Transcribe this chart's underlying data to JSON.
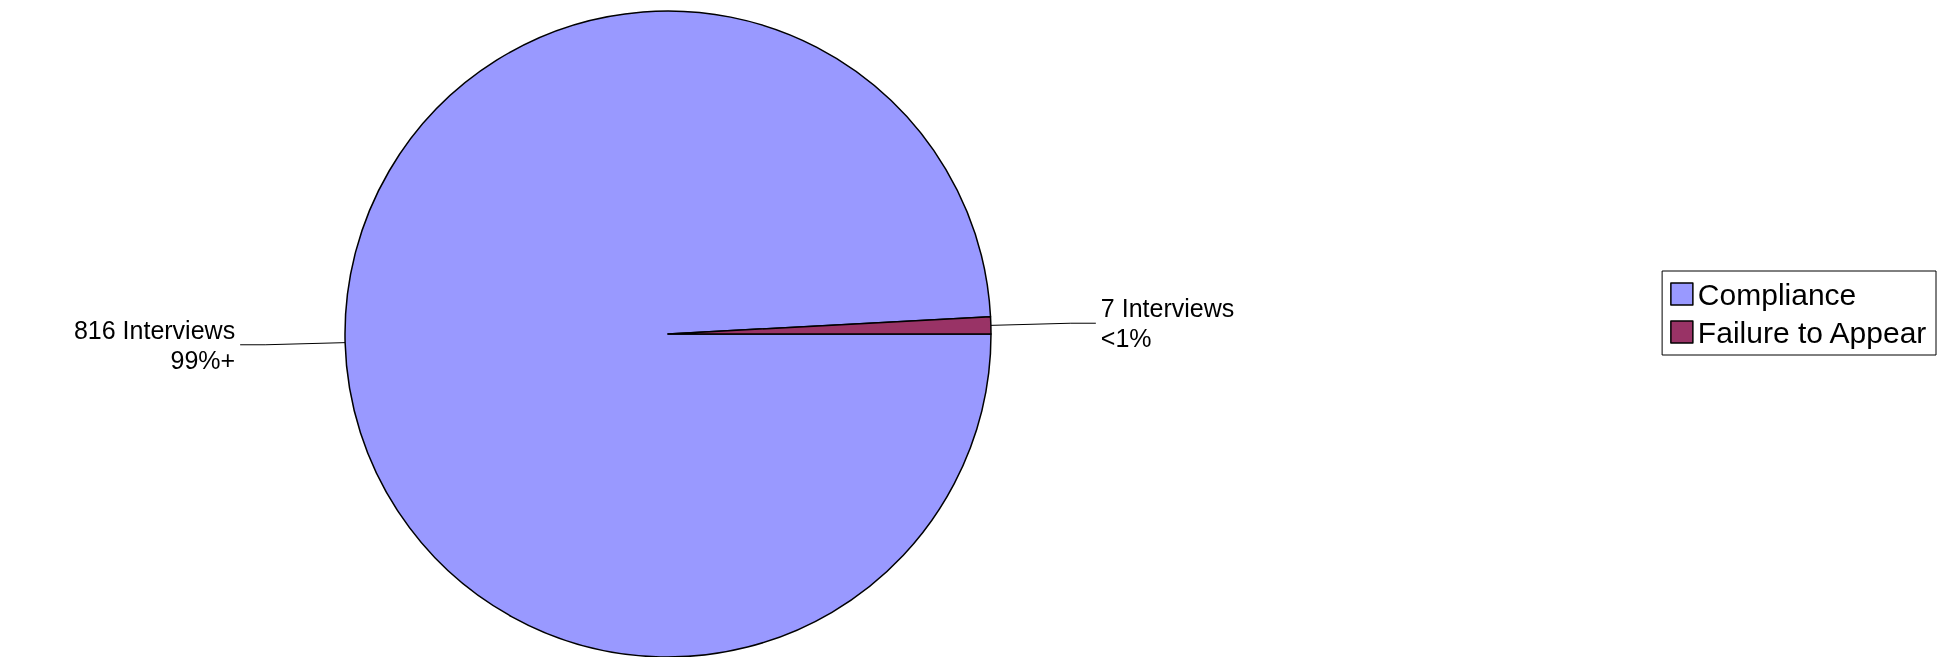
{
  "chart_data": {
    "type": "pie",
    "categories": [
      "Compliance",
      "Failure to Appear"
    ],
    "values": [
      816,
      7
    ],
    "colors": [
      "#9999ff",
      "#993366"
    ],
    "value_labels": [
      "816 Interviews\n99%+",
      "7 Interviews\n<1%"
    ],
    "legend": "right"
  }
}
